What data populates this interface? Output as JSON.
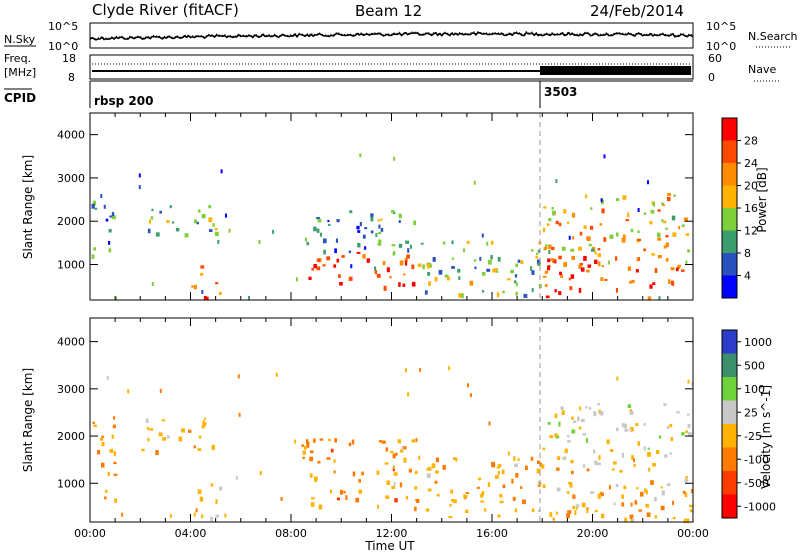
{
  "header": {
    "station": "Clyde River (fitACF)",
    "beam": "Beam 12",
    "date": "24/Feb/2014"
  },
  "noise_panel": {
    "left_label": "N.Sky",
    "right_label": "N.Search",
    "left_ticks": [
      "10^5",
      "10^0"
    ],
    "right_ticks": [
      "10^5",
      "10^0"
    ]
  },
  "freq_panel": {
    "left_label_1": "Freq.",
    "left_label_2": "[MHz]",
    "left_ticks": [
      "18",
      "8"
    ],
    "right_label": "Nave",
    "right_ticks": [
      "60",
      "0"
    ]
  },
  "cpid_panel": {
    "label": "CPID",
    "segments": [
      {
        "name": "rbsp 200",
        "start_hour": 0
      },
      {
        "name": "3503",
        "start_hour": 18
      }
    ]
  },
  "x_axis": {
    "label": "Time UT",
    "tick_labels": [
      "00:00",
      "04:00",
      "08:00",
      "12:00",
      "16:00",
      "20:00",
      "00:00"
    ]
  },
  "power_colorbar": {
    "label": "Power [dB]",
    "tick_labels": [
      "28",
      "24",
      "20",
      "16",
      "12",
      "8",
      "4"
    ],
    "colors": [
      "#ff0000",
      "#ff4a00",
      "#ff8c00",
      "#ffb300",
      "#7fcf3a",
      "#3c9e6e",
      "#2a52be",
      "#0000ff"
    ]
  },
  "velocity_colorbar": {
    "label": "Velocity [m s^-1]",
    "tick_labels": [
      "1000",
      "500",
      "100",
      "25",
      "-25",
      "-100",
      "-500",
      "-1000"
    ],
    "colors": [
      "#2a3cc8",
      "#3c8f6c",
      "#6fd23a",
      "#c8c8c8",
      "#ffb300",
      "#ff7a00",
      "#ff3c00",
      "#ff0000"
    ]
  },
  "chart_data": [
    {
      "type": "line",
      "title": "N.Sky / N.Search",
      "x_range_hours": [
        0,
        24
      ],
      "y_scale": "log",
      "y_range": [
        "10^0",
        "10^5"
      ]
    },
    {
      "type": "line",
      "title": "Freq. / Nave",
      "freq_segments": [
        {
          "start_hour": 0,
          "end_hour": 18,
          "freq_mhz": 10.5,
          "nave_approx": 38
        },
        {
          "start_hour": 18,
          "end_hour": 24,
          "freq_mhz": 10.5,
          "nave_approx": 40
        }
      ],
      "freq_range_mhz": [
        8,
        18
      ],
      "nave_range": [
        0,
        60
      ]
    },
    {
      "type": "heatmap",
      "parameter": "Power",
      "ylabel": "Slant Range [km]",
      "xlabel": "Time UT",
      "y_tick_labels": [
        "1000",
        "2000",
        "3000",
        "4000"
      ],
      "x_range_hours": [
        0,
        24
      ],
      "y_range_km": [
        180,
        4500
      ],
      "value_range_db": [
        0,
        30
      ],
      "scatter_regions": [
        {
          "t0": 0.0,
          "t1": 1.1,
          "r0": 1200,
          "r1": 2500,
          "value": 8
        },
        {
          "t0": 2.0,
          "t1": 5.3,
          "r0": 1700,
          "r1": 2400,
          "value": 12
        },
        {
          "t0": 4.0,
          "t1": 5.2,
          "r0": 250,
          "r1": 1000,
          "value": 22
        },
        {
          "t0": 8.4,
          "t1": 13.0,
          "r0": 500,
          "r1": 1300,
          "value": 26
        },
        {
          "t0": 8.5,
          "t1": 13.0,
          "r0": 1300,
          "r1": 2300,
          "value": 10
        },
        {
          "t0": 13.0,
          "t1": 18.0,
          "r0": 300,
          "r1": 1600,
          "value": 12
        },
        {
          "t0": 18.0,
          "t1": 24.0,
          "r0": 250,
          "r1": 1200,
          "value": 26
        },
        {
          "t0": 18.0,
          "t1": 24.0,
          "r0": 1200,
          "r1": 2700,
          "value": 18
        }
      ]
    },
    {
      "type": "heatmap",
      "parameter": "Velocity",
      "ylabel": "Slant Range [km]",
      "xlabel": "Time UT",
      "y_tick_labels": [
        "1000",
        "2000",
        "3000",
        "4000"
      ],
      "x_range_hours": [
        0,
        24
      ],
      "y_range_km": [
        180,
        4500
      ],
      "value_range_ms": [
        -1000,
        1000
      ],
      "scatter_regions": [
        {
          "t0": 0.0,
          "t1": 1.1,
          "r0": 500,
          "r1": 2500,
          "value": -200
        },
        {
          "t0": 2.0,
          "t1": 5.3,
          "r0": 1700,
          "r1": 2400,
          "value": -150
        },
        {
          "t0": 4.0,
          "t1": 5.2,
          "r0": 250,
          "r1": 1000,
          "value": 0
        },
        {
          "t0": 8.4,
          "t1": 13.0,
          "r0": 500,
          "r1": 2000,
          "value": -300
        },
        {
          "t0": 13.0,
          "t1": 18.0,
          "r0": 300,
          "r1": 1600,
          "value": -200
        },
        {
          "t0": 18.0,
          "t1": 24.0,
          "r0": 250,
          "r1": 1400,
          "value": -150
        },
        {
          "t0": 18.0,
          "t1": 24.0,
          "r0": 1400,
          "r1": 2700,
          "value": 50
        }
      ]
    }
  ]
}
